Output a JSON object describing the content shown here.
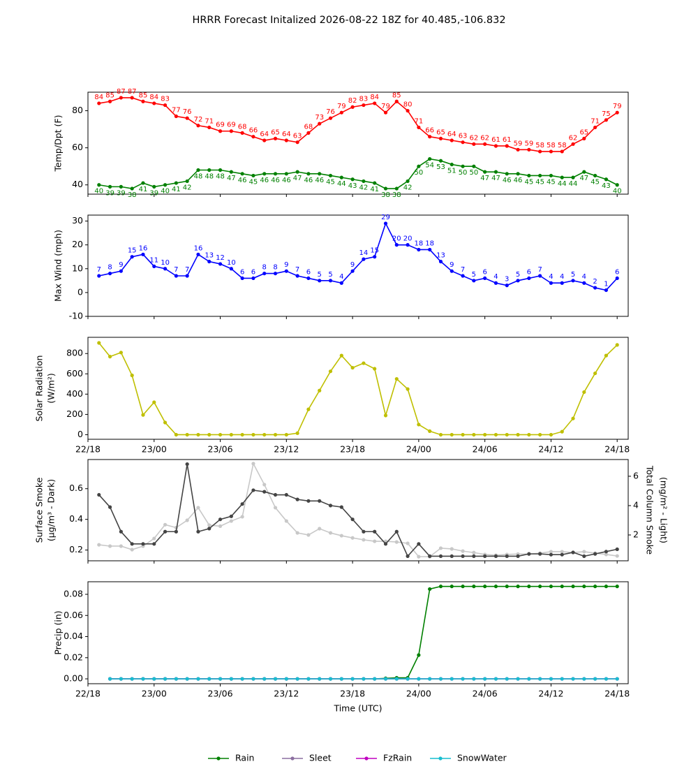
{
  "title": "HRRR Forecast Initalized 2026-08-22 18Z for 40.485,-106.832",
  "chart_data": [
    {
      "type": "line",
      "ylabel": [
        "Temp/Dpt (F)"
      ],
      "x": [
        1,
        2,
        3,
        4,
        5,
        6,
        7,
        8,
        9,
        10,
        11,
        12,
        13,
        14,
        15,
        16,
        17,
        18,
        19,
        20,
        21,
        22,
        23,
        24,
        25,
        26,
        27,
        28,
        29,
        30,
        31,
        32,
        33,
        34,
        35,
        36,
        37,
        38,
        39,
        40,
        41,
        42,
        43,
        44,
        45,
        46,
        47,
        48
      ],
      "xlim": [
        0,
        49
      ],
      "xticks": [
        0,
        6,
        12,
        18,
        24,
        30,
        36,
        42,
        48
      ],
      "ylim": [
        35,
        90
      ],
      "yticks": [
        40,
        60,
        80
      ],
      "series": [
        {
          "color": "#ff0000",
          "label_position": "above",
          "values": [
            84,
            85,
            87,
            87,
            85,
            84,
            83,
            77,
            76,
            72,
            71,
            69,
            69,
            68,
            66,
            64,
            65,
            64,
            63,
            68,
            73,
            76,
            79,
            82,
            83,
            84,
            79,
            85,
            80,
            71,
            66,
            65,
            64,
            63,
            62,
            62,
            61,
            61,
            59,
            59,
            58,
            58,
            58,
            62,
            65,
            71,
            75,
            79
          ]
        },
        {
          "color": "#008000",
          "label_position": "below",
          "values": [
            40,
            39,
            39,
            38,
            41,
            39,
            40,
            41,
            42,
            48,
            48,
            48,
            47,
            46,
            45,
            46,
            46,
            46,
            47,
            46,
            46,
            45,
            44,
            43,
            42,
            41,
            38,
            38,
            42,
            50,
            54,
            53,
            51,
            50,
            50,
            47,
            47,
            46,
            46,
            45,
            45,
            45,
            44,
            44,
            47,
            45,
            43,
            40
          ]
        }
      ]
    },
    {
      "type": "line",
      "ylabel": [
        "Max Wind (mph)"
      ],
      "x": [
        1,
        2,
        3,
        4,
        5,
        6,
        7,
        8,
        9,
        10,
        11,
        12,
        13,
        14,
        15,
        16,
        17,
        18,
        19,
        20,
        21,
        22,
        23,
        24,
        25,
        26,
        27,
        28,
        29,
        30,
        31,
        32,
        33,
        34,
        35,
        36,
        37,
        38,
        39,
        40,
        41,
        42,
        43,
        44,
        45,
        46,
        47,
        48
      ],
      "xlim": [
        0,
        49
      ],
      "xticks": [
        0,
        6,
        12,
        18,
        24,
        30,
        36,
        42,
        48
      ],
      "ylim": [
        -10,
        32.5
      ],
      "yticks": [
        -10,
        0,
        10,
        20,
        30
      ],
      "series": [
        {
          "color": "#0000ff",
          "label_position": "above",
          "values": [
            7,
            8,
            9,
            15,
            16,
            11,
            10,
            7,
            7,
            16,
            13,
            12,
            10,
            6,
            6,
            8,
            8,
            9,
            7,
            6,
            5,
            5,
            4,
            9,
            14,
            15,
            29,
            20,
            20,
            18,
            18,
            13,
            9,
            7,
            5,
            6,
            4,
            3,
            5,
            6,
            7,
            4,
            4,
            5,
            4,
            2,
            1,
            6
          ]
        }
      ]
    },
    {
      "type": "line",
      "ylabel": [
        "Solar Radiation",
        "(W/m²)"
      ],
      "x": [
        1,
        2,
        3,
        4,
        5,
        6,
        7,
        8,
        9,
        10,
        11,
        12,
        13,
        14,
        15,
        16,
        17,
        18,
        19,
        20,
        21,
        22,
        23,
        24,
        25,
        26,
        27,
        28,
        29,
        30,
        31,
        32,
        33,
        34,
        35,
        36,
        37,
        38,
        39,
        40,
        41,
        42,
        43,
        44,
        45,
        46,
        47,
        48
      ],
      "xlim": [
        0,
        49
      ],
      "xticks": [
        {
          "value": 0,
          "label": "22/18"
        },
        {
          "value": 6,
          "label": "23/00"
        },
        {
          "value": 12,
          "label": "23/06"
        },
        {
          "value": 18,
          "label": "23/12"
        },
        {
          "value": 24,
          "label": "23/18"
        },
        {
          "value": 30,
          "label": "24/00"
        },
        {
          "value": 36,
          "label": "24/06"
        },
        {
          "value": 42,
          "label": "24/12"
        },
        {
          "value": 48,
          "label": "24/18"
        }
      ],
      "ylim": [
        -45,
        960
      ],
      "yticks": [
        0,
        200,
        400,
        600,
        800
      ],
      "series": [
        {
          "color": "#bfbf00",
          "values": [
            905,
            770,
            810,
            585,
            195,
            320,
            120,
            0,
            0,
            0,
            0,
            0,
            0,
            0,
            0,
            0,
            0,
            0,
            15,
            250,
            435,
            625,
            780,
            660,
            705,
            650,
            190,
            550,
            450,
            100,
            35,
            0,
            0,
            0,
            0,
            0,
            0,
            0,
            0,
            0,
            0,
            0,
            30,
            160,
            420,
            605,
            780,
            885
          ]
        }
      ]
    },
    {
      "type": "line",
      "ylabel": [
        "Surface Smoke",
        "(μg/m³ - Dark)"
      ],
      "y2label": [
        "Total Column Smoke",
        "(mg/m² - Light)"
      ],
      "x": [
        1,
        2,
        3,
        4,
        5,
        6,
        7,
        8,
        9,
        10,
        11,
        12,
        13,
        14,
        15,
        16,
        17,
        18,
        19,
        20,
        21,
        22,
        23,
        24,
        25,
        26,
        27,
        28,
        29,
        30,
        31,
        32,
        33,
        34,
        35,
        36,
        37,
        38,
        39,
        40,
        41,
        42,
        43,
        44,
        45,
        46,
        47,
        48
      ],
      "xlim": [
        0,
        49
      ],
      "xticks": [
        0,
        6,
        12,
        18,
        24,
        30,
        36,
        42,
        48
      ],
      "ylim": [
        0.13,
        0.79
      ],
      "yticks": [
        0.2,
        0.4,
        0.6
      ],
      "y2lim": [
        0.24,
        7.14
      ],
      "y2ticks": [
        2,
        4,
        6
      ],
      "series": [
        {
          "color": "#c8c8c8",
          "axis": "y2",
          "values": [
            1.33,
            1.24,
            1.24,
            1.0,
            1.24,
            1.76,
            2.7,
            2.5,
            3.0,
            3.86,
            2.67,
            2.6,
            2.95,
            3.24,
            6.86,
            5.43,
            3.86,
            2.95,
            2.14,
            2.0,
            2.43,
            2.14,
            1.95,
            1.8,
            1.67,
            1.57,
            1.57,
            1.52,
            1.43,
            0.52,
            0.52,
            1.1,
            1.05,
            0.9,
            0.8,
            0.67,
            0.62,
            0.67,
            0.7,
            0.7,
            0.76,
            0.86,
            0.86,
            0.8,
            0.86,
            0.76,
            0.67,
            0.57
          ]
        },
        {
          "color": "#444444",
          "values": [
            0.56,
            0.48,
            0.32,
            0.24,
            0.24,
            0.24,
            0.32,
            0.32,
            0.76,
            0.32,
            0.34,
            0.4,
            0.42,
            0.5,
            0.59,
            0.58,
            0.56,
            0.56,
            0.53,
            0.52,
            0.52,
            0.49,
            0.48,
            0.4,
            0.32,
            0.32,
            0.24,
            0.32,
            0.16,
            0.24,
            0.16,
            0.16,
            0.16,
            0.16,
            0.16,
            0.16,
            0.16,
            0.16,
            0.16,
            0.175,
            0.175,
            0.17,
            0.17,
            0.185,
            0.16,
            0.175,
            0.19,
            0.205
          ]
        }
      ]
    },
    {
      "type": "line",
      "ylabel": [
        "Precip (in)"
      ],
      "xlabel": "Time (UTC)",
      "x": [
        2,
        3,
        4,
        5,
        6,
        7,
        8,
        9,
        10,
        11,
        12,
        13,
        14,
        15,
        16,
        17,
        18,
        19,
        20,
        21,
        22,
        23,
        24,
        25,
        26,
        27,
        28,
        29,
        30,
        31,
        32,
        33,
        34,
        35,
        36,
        37,
        38,
        39,
        40,
        41,
        42,
        43,
        44,
        45,
        46,
        47,
        48
      ],
      "xlim": [
        0,
        49
      ],
      "xticks": [
        {
          "value": 0,
          "label": "22/18"
        },
        {
          "value": 6,
          "label": "23/00"
        },
        {
          "value": 12,
          "label": "23/06"
        },
        {
          "value": 18,
          "label": "23/12"
        },
        {
          "value": 24,
          "label": "23/18"
        },
        {
          "value": 30,
          "label": "24/00"
        },
        {
          "value": 36,
          "label": "24/06"
        },
        {
          "value": 42,
          "label": "24/12"
        },
        {
          "value": 48,
          "label": "24/18"
        }
      ],
      "ylim": [
        -0.0046,
        0.0919
      ],
      "yticks": [
        {
          "value": 0,
          "label": "0.00"
        },
        0.02,
        0.04,
        0.06,
        0.08
      ],
      "legend": "lower center",
      "series": [
        {
          "name": "Rain",
          "color": "#008000",
          "values": [
            0,
            0,
            0,
            0,
            0,
            0,
            0,
            0,
            0,
            0,
            0,
            0,
            0,
            0,
            0,
            0,
            0,
            0,
            0,
            0,
            0,
            0,
            0,
            0,
            0,
            0.0005,
            0.001,
            0.001,
            0.0225,
            0.085,
            0.0875,
            0.0875,
            0.0875,
            0.0875,
            0.0875,
            0.0875,
            0.0875,
            0.0875,
            0.0875,
            0.0875,
            0.0875,
            0.0875,
            0.0875,
            0.0875,
            0.0875,
            0.0875,
            0.0875
          ]
        },
        {
          "name": "Sleet",
          "color": "#8c6fa0",
          "values": [
            0,
            0,
            0,
            0,
            0,
            0,
            0,
            0,
            0,
            0,
            0,
            0,
            0,
            0,
            0,
            0,
            0,
            0,
            0,
            0,
            0,
            0,
            0,
            0,
            0,
            0,
            0,
            0,
            0,
            0,
            0,
            0,
            0,
            0,
            0,
            0,
            0,
            0,
            0,
            0,
            0,
            0,
            0,
            0,
            0,
            0,
            0
          ]
        },
        {
          "name": "FzRain",
          "color": "#c000c0",
          "values": [
            0,
            0,
            0,
            0,
            0,
            0,
            0,
            0,
            0,
            0,
            0,
            0,
            0,
            0,
            0,
            0,
            0,
            0,
            0,
            0,
            0,
            0,
            0,
            0,
            0,
            0,
            0,
            0,
            0,
            0,
            0,
            0,
            0,
            0,
            0,
            0,
            0,
            0,
            0,
            0,
            0,
            0,
            0,
            0,
            0,
            0,
            0
          ]
        },
        {
          "name": "SnowWater",
          "color": "#17becf",
          "values": [
            0,
            0,
            0,
            0,
            0,
            0,
            0,
            0,
            0,
            0,
            0,
            0,
            0,
            0,
            0,
            0,
            0,
            0,
            0,
            0,
            0,
            0,
            0,
            0,
            0,
            0,
            0,
            0,
            0,
            0,
            0,
            0,
            0,
            0,
            0,
            0,
            0,
            0,
            0,
            0,
            0,
            0,
            0,
            0,
            0,
            0,
            0
          ]
        }
      ]
    }
  ]
}
